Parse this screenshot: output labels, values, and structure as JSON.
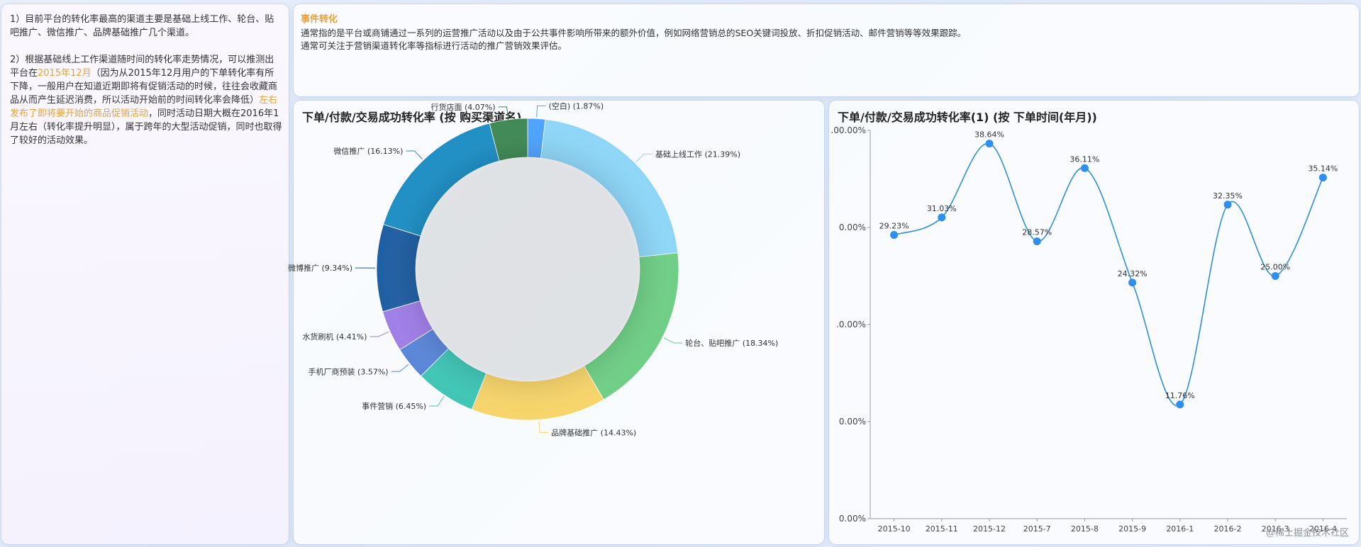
{
  "left_panel": {
    "p1": "1）目前平台的转化率最高的渠道主要是基础上线工作、轮台、贴吧推广、微信推广、品牌基础推广几个渠道。",
    "p2_a": "2）根据基础线上工作渠道随时间的转化率走势情况，可以推测出平台在",
    "p2_hl1": "2015年12月",
    "p2_b": "（因为从2015年12月用户的下单转化率有所下降，一般用户在知道近期即将有促销活动的时候，往往会收藏商品从而产生延迟消费，所以活动开始前的时间转化率会降低）",
    "p2_hl2": "左右发布了即将要开始的商品促销活动",
    "p2_c": "，同时活动日期大概在2016年1月左右（转化率提升明显），属于跨年的大型活动促销，同时也取得了较好的活动效果。"
  },
  "event": {
    "title": "事件转化",
    "line1": "通常指的是平台或商铺通过一系列的运营推广活动以及由于公共事件影响所带来的额外价值，例如网络营销总的SEO关键词投放、折扣促销活动、邮件营销等等效果跟踪。",
    "line2": "通常可关注于营销渠道转化率等指标进行活动的推广营销效果评估。"
  },
  "pie": {
    "title": "下单/付款/交易成功转化率 (按 购买渠道名)"
  },
  "line": {
    "title": "下单/付款/交易成功转化率(1) (按 下单时间(年月))"
  },
  "watermark": "@稀土掘金技术社区",
  "chart_data": [
    {
      "type": "pie",
      "title": "下单/付款/交易成功转化率 (按 购买渠道名)",
      "slices": [
        {
          "label": "(空白) (1.87%)",
          "value": 1.87,
          "color": "#4da3ff"
        },
        {
          "label": "基础上线工作 (21.39%)",
          "value": 21.39,
          "color": "#8ed6f8"
        },
        {
          "label": "轮台、贴吧推广 (18.34%)",
          "value": 18.34,
          "color": "#6fcf86"
        },
        {
          "label": "品牌基础推广 (14.43%)",
          "value": 14.43,
          "color": "#f7d56a"
        },
        {
          "label": "事件营销 (6.45%)",
          "value": 6.45,
          "color": "#3fc6b6"
        },
        {
          "label": "手机厂商预装 (3.57%)",
          "value": 3.57,
          "color": "#5a86d9"
        },
        {
          "label": "水货刷机 (4.41%)",
          "value": 4.41,
          "color": "#a07ee8"
        },
        {
          "label": "微博推广 (9.34%)",
          "value": 9.34,
          "color": "#1f5ea3"
        },
        {
          "label": "微信推广 (16.13%)",
          "value": 16.13,
          "color": "#1e8fc5"
        },
        {
          "label": "行货店面 (4.07%)",
          "value": 4.07,
          "color": "#3f8a55"
        }
      ]
    },
    {
      "type": "line",
      "title": "下单/付款/交易成功转化率(1) (按 下单时间(年月))",
      "categories": [
        "2015-10",
        "2015-11",
        "2015-12",
        "2015-7",
        "2015-8",
        "2015-9",
        "2016-1",
        "2016-2",
        "2016-3",
        "2016-4"
      ],
      "values": [
        29.23,
        31.03,
        38.64,
        28.57,
        36.11,
        24.32,
        11.76,
        32.35,
        25.0,
        35.14
      ],
      "value_labels": [
        "29.23%",
        "31.03%",
        "38.64%",
        "28.57%",
        "36.11%",
        "24.32%",
        "11.76%",
        "32.35%",
        "25.00%",
        "35.14%"
      ],
      "ytick_labels": [
        ".00.00%",
        "0.00%",
        ".0.00%",
        "0.00%",
        "0.00%"
      ],
      "ylim": [
        0,
        40
      ],
      "color": "#3190d0",
      "marker_color": "#2f8ff0"
    }
  ]
}
